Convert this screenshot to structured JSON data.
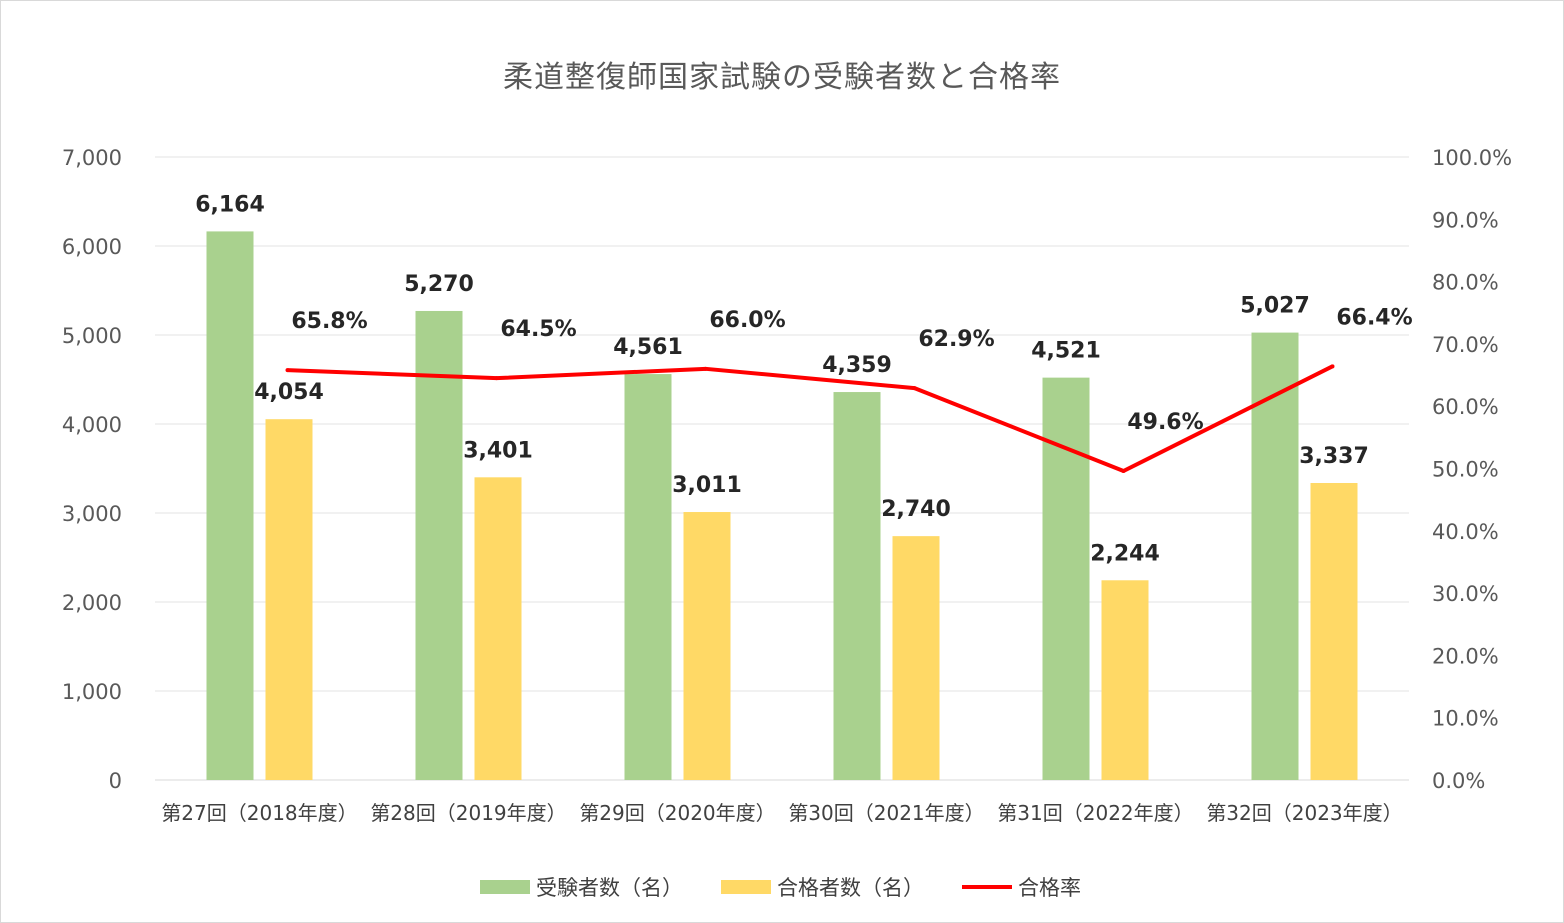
{
  "chart_data": {
    "type": "bar",
    "title": "柔道整復師国家試験の受験者数と合格率",
    "categories": [
      "第27回（2018年度）",
      "第28回（2019年度）",
      "第29回（2020年度）",
      "第30回（2021年度）",
      "第31回（2022年度）",
      "第32回（2023年度）"
    ],
    "series": [
      {
        "name": "受験者数（名）",
        "type": "bar",
        "axis": "left",
        "color": "#a9d18e",
        "values": [
          6164,
          5270,
          4561,
          4359,
          4521,
          5027
        ],
        "labels": [
          "6,164",
          "5,270",
          "4,561",
          "4,359",
          "4,521",
          "5,027"
        ]
      },
      {
        "name": "合格者数（名）",
        "type": "bar",
        "axis": "left",
        "color": "#ffd966",
        "values": [
          4054,
          3401,
          3011,
          2740,
          2244,
          3337
        ],
        "labels": [
          "4,054",
          "3,401",
          "3,011",
          "2,740",
          "2,244",
          "3,337"
        ]
      },
      {
        "name": "合格率",
        "type": "line",
        "axis": "right",
        "color": "#ff0000",
        "values": [
          65.8,
          64.5,
          66.0,
          62.9,
          49.6,
          66.4
        ],
        "labels": [
          "65.8%",
          "64.5%",
          "66.0%",
          "62.9%",
          "49.6%",
          "66.4%"
        ]
      }
    ],
    "y_left": {
      "ylim": [
        0,
        7000
      ],
      "ticks": [
        0,
        1000,
        2000,
        3000,
        4000,
        5000,
        6000,
        7000
      ],
      "tick_labels": [
        "0",
        "1,000",
        "2,000",
        "3,000",
        "4,000",
        "5,000",
        "6,000",
        "7,000"
      ]
    },
    "y_right": {
      "ylim": [
        0,
        100
      ],
      "ticks": [
        0,
        10,
        20,
        30,
        40,
        50,
        60,
        70,
        80,
        90,
        100
      ],
      "tick_labels": [
        "0.0%",
        "10.0%",
        "20.0%",
        "30.0%",
        "40.0%",
        "50.0%",
        "60.0%",
        "70.0%",
        "80.0%",
        "90.0%",
        "100.0%"
      ]
    },
    "grid": true,
    "legend_position": "bottom"
  }
}
